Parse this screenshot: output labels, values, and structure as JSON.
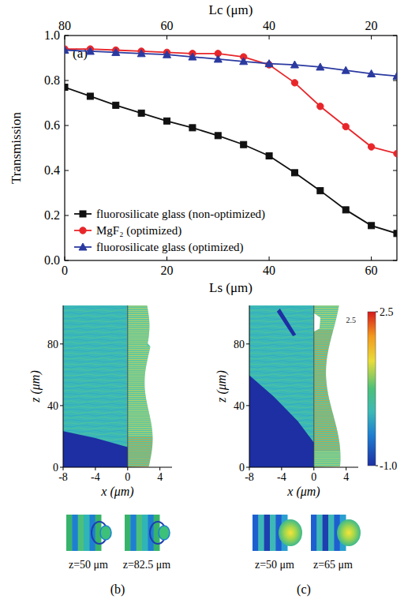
{
  "chart_data": [
    {
      "type": "line",
      "panel_label": "(a)",
      "x_label": "Ls (μm)",
      "x2_label": "Lc (μm)",
      "y_label": "Transmission",
      "x": [
        0,
        5,
        10,
        15,
        20,
        25,
        30,
        35,
        40,
        45,
        50,
        55,
        60,
        65
      ],
      "xlim": [
        0,
        65
      ],
      "xticks": [
        0,
        20,
        40,
        60
      ],
      "x2lim": [
        80,
        15
      ],
      "x2ticks": [
        80,
        60,
        40,
        20
      ],
      "ylim": [
        0,
        1.0
      ],
      "yticks": [
        {
          "value": 0,
          "label": "0.0"
        },
        0.2,
        0.4,
        0.6,
        0.8,
        {
          "value": 1.0,
          "label": "1.0"
        }
      ],
      "grid": false,
      "legend": "bottom-left",
      "series": [
        {
          "name": "fluorosilicate glass (non-optimized)",
          "color": "#111111",
          "marker": "square",
          "values": [
            0.77,
            0.73,
            0.69,
            0.655,
            0.62,
            0.59,
            0.555,
            0.515,
            0.465,
            0.39,
            0.31,
            0.225,
            0.155,
            0.12
          ]
        },
        {
          "name": "MgF₂ (optimized)",
          "color": "#e8262a",
          "marker": "circle",
          "values": [
            0.94,
            0.94,
            0.935,
            0.93,
            0.925,
            0.92,
            0.92,
            0.905,
            0.87,
            0.79,
            0.685,
            0.595,
            0.505,
            0.475
          ]
        },
        {
          "name": "fluorosilicate glass (optimized)",
          "color": "#2b3aa0",
          "marker": "triangle",
          "values": [
            0.935,
            0.93,
            0.925,
            0.92,
            0.915,
            0.905,
            0.895,
            0.885,
            0.875,
            0.87,
            0.86,
            0.845,
            0.83,
            0.82
          ]
        }
      ]
    },
    {
      "type": "field_map",
      "panel_label": "(b)",
      "x_label": "x (μm)",
      "y_label": "z (μm)",
      "xlim": [
        -8,
        5.5
      ],
      "xticks": [
        -8,
        -4,
        0,
        4
      ],
      "ylim": [
        0,
        105
      ],
      "yticks": [
        0,
        40,
        80
      ],
      "slices": [
        "z=50 μm",
        "z=82.5 μm"
      ]
    },
    {
      "type": "field_map",
      "panel_label": "(c)",
      "x_label": "x (μm)",
      "y_label": "z (μm)",
      "xlim": [
        -8,
        5.5
      ],
      "xticks": [
        -8,
        -4,
        0,
        4
      ],
      "ylim": [
        0,
        105
      ],
      "yticks": [
        0,
        40,
        80
      ],
      "slices": [
        "z=50 μm",
        "z=65 μm"
      ],
      "colorbar": {
        "range": [
          -1.0,
          2.5
        ],
        "ticks": [
          2.5,
          {
            "value": -1.0,
            "label": "-1.0"
          }
        ]
      },
      "annotations": [
        "2.5"
      ]
    }
  ]
}
